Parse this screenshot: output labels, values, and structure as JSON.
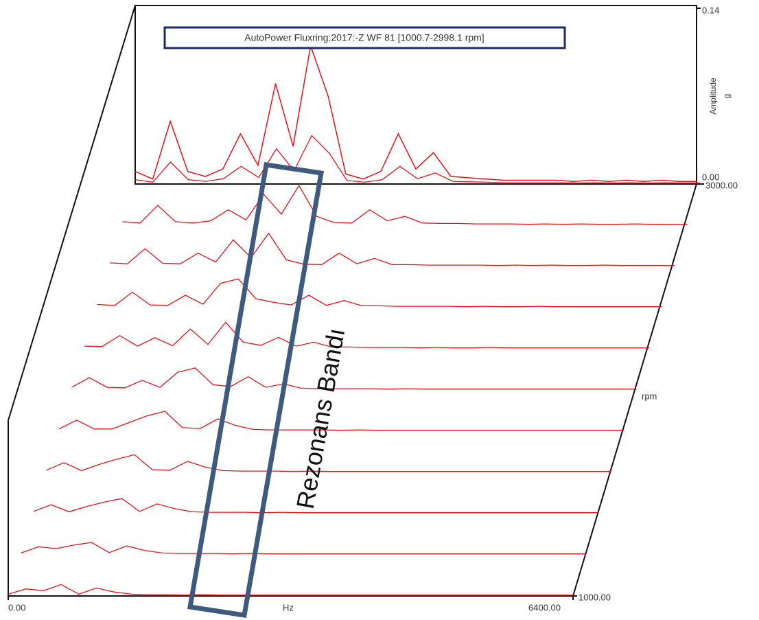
{
  "chart_data": {
    "type": "waterfall",
    "legend_label": "AutoPower Fluxring:2017:-Z WF 81 [1000.7-2998.1 rpm]",
    "annotation": "Rezonans Bandı",
    "x_label": "Hz",
    "z_label": "rpm",
    "y_label": "Amplitude",
    "y_unit": "g",
    "color": "#e8101a",
    "xlim": [
      0,
      6400
    ],
    "xticks": [
      {
        "value": 0,
        "label": "0.00"
      },
      {
        "value": 6400,
        "label": "6400.00"
      }
    ],
    "ylim": [
      0,
      0.14
    ],
    "yticks": [
      {
        "value": 0,
        "label": "0.00"
      },
      {
        "value": 0.14,
        "label": "0.14"
      }
    ],
    "zlim": [
      1000,
      3000
    ],
    "zticks": [
      {
        "value": 1000,
        "label": "1000.00"
      },
      {
        "value": 3000,
        "label": "3000.00"
      }
    ],
    "x": [
      0,
      200,
      400,
      600,
      800,
      1000,
      1200,
      1400,
      1600,
      1800,
      2000,
      2200,
      2400,
      2600,
      2800,
      3000,
      3200,
      3400,
      3600,
      3800,
      4000,
      4200,
      4400,
      4600,
      4800,
      5000,
      5200,
      5400,
      5600,
      5800,
      6000,
      6200,
      6400
    ],
    "slices": [
      {
        "rpm": 3000,
        "values": [
          0.01,
          0.004,
          0.05,
          0.01,
          0.006,
          0.012,
          0.04,
          0.015,
          0.08,
          0.03,
          0.11,
          0.07,
          0.008,
          0.004,
          0.01,
          0.04,
          0.012,
          0.025,
          0.006,
          0.005,
          0.004,
          0.003,
          0.003,
          0.003,
          0.003,
          0.002,
          0.003,
          0.002,
          0.003,
          0.002,
          0.003,
          0.002,
          0.002
        ]
      },
      {
        "rpm": 2800,
        "values": [
          0.008,
          0.005,
          0.045,
          0.008,
          0.005,
          0.01,
          0.035,
          0.012,
          0.07,
          0.025,
          0.09,
          0.02,
          0.006,
          0.005,
          0.035,
          0.01,
          0.02,
          0.005,
          0.004,
          0.004,
          0.003,
          0.003,
          0.003,
          0.002,
          0.003,
          0.002,
          0.003,
          0.002,
          0.002,
          0.003,
          0.002,
          0.002,
          0.002
        ]
      },
      {
        "rpm": 2600,
        "values": [
          0.008,
          0.006,
          0.04,
          0.007,
          0.006,
          0.03,
          0.01,
          0.06,
          0.02,
          0.075,
          0.015,
          0.005,
          0.004,
          0.03,
          0.006,
          0.018,
          0.004,
          0.004,
          0.003,
          0.003,
          0.003,
          0.003,
          0.002,
          0.003,
          0.002,
          0.003,
          0.002,
          0.002,
          0.003,
          0.002,
          0.002,
          0.002,
          0.002
        ]
      },
      {
        "rpm": 2400,
        "values": [
          0.007,
          0.005,
          0.035,
          0.006,
          0.005,
          0.028,
          0.008,
          0.055,
          0.065,
          0.02,
          0.012,
          0.006,
          0.028,
          0.005,
          0.016,
          0.004,
          0.004,
          0.003,
          0.003,
          0.003,
          0.003,
          0.002,
          0.003,
          0.002,
          0.002,
          0.003,
          0.002,
          0.002,
          0.002,
          0.002,
          0.002,
          0.002,
          0.002
        ]
      },
      {
        "rpm": 2200,
        "values": [
          0.006,
          0.005,
          0.03,
          0.006,
          0.025,
          0.007,
          0.045,
          0.01,
          0.06,
          0.015,
          0.008,
          0.026,
          0.006,
          0.015,
          0.004,
          0.004,
          0.003,
          0.003,
          0.003,
          0.002,
          0.003,
          0.002,
          0.002,
          0.003,
          0.002,
          0.002,
          0.002,
          0.002,
          0.002,
          0.002,
          0.002,
          0.002,
          0.002
        ]
      },
      {
        "rpm": 2000,
        "values": [
          0.006,
          0.028,
          0.006,
          0.005,
          0.022,
          0.006,
          0.04,
          0.05,
          0.012,
          0.008,
          0.03,
          0.006,
          0.014,
          0.004,
          0.003,
          0.003,
          0.003,
          0.003,
          0.002,
          0.003,
          0.002,
          0.002,
          0.002,
          0.002,
          0.002,
          0.002,
          0.002,
          0.002,
          0.002,
          0.002,
          0.002,
          0.002,
          0.002
        ]
      },
      {
        "rpm": 1800,
        "values": [
          0.005,
          0.025,
          0.005,
          0.005,
          0.02,
          0.035,
          0.045,
          0.008,
          0.006,
          0.028,
          0.013,
          0.004,
          0.003,
          0.003,
          0.003,
          0.003,
          0.002,
          0.003,
          0.002,
          0.002,
          0.002,
          0.002,
          0.002,
          0.002,
          0.002,
          0.002,
          0.002,
          0.002,
          0.002,
          0.002,
          0.002,
          0.002,
          0.002
        ]
      },
      {
        "rpm": 1600,
        "values": [
          0.005,
          0.022,
          0.004,
          0.018,
          0.03,
          0.04,
          0.006,
          0.005,
          0.025,
          0.012,
          0.004,
          0.003,
          0.003,
          0.003,
          0.002,
          0.003,
          0.002,
          0.002,
          0.002,
          0.002,
          0.002,
          0.002,
          0.002,
          0.002,
          0.002,
          0.002,
          0.002,
          0.002,
          0.002,
          0.002,
          0.002,
          0.002,
          0.002
        ]
      },
      {
        "rpm": 1400,
        "values": [
          0.005,
          0.02,
          0.004,
          0.016,
          0.026,
          0.034,
          0.005,
          0.022,
          0.011,
          0.004,
          0.003,
          0.003,
          0.003,
          0.002,
          0.003,
          0.002,
          0.002,
          0.002,
          0.002,
          0.002,
          0.002,
          0.002,
          0.002,
          0.002,
          0.002,
          0.002,
          0.002,
          0.002,
          0.002,
          0.002,
          0.002,
          0.002,
          0.002
        ]
      },
      {
        "rpm": 1200,
        "values": [
          0.004,
          0.018,
          0.014,
          0.022,
          0.028,
          0.005,
          0.02,
          0.01,
          0.004,
          0.003,
          0.003,
          0.003,
          0.002,
          0.003,
          0.002,
          0.002,
          0.002,
          0.002,
          0.002,
          0.002,
          0.002,
          0.002,
          0.002,
          0.002,
          0.002,
          0.002,
          0.002,
          0.002,
          0.002,
          0.002,
          0.002,
          0.002,
          0.002
        ]
      },
      {
        "rpm": 1000,
        "values": [
          0.004,
          0.016,
          0.012,
          0.026,
          0.004,
          0.018,
          0.009,
          0.004,
          0.003,
          0.003,
          0.002,
          0.003,
          0.002,
          0.002,
          0.002,
          0.002,
          0.002,
          0.002,
          0.002,
          0.002,
          0.002,
          0.002,
          0.002,
          0.002,
          0.002,
          0.002,
          0.002,
          0.002,
          0.002,
          0.002,
          0.002,
          0.002,
          0.002
        ]
      }
    ]
  }
}
